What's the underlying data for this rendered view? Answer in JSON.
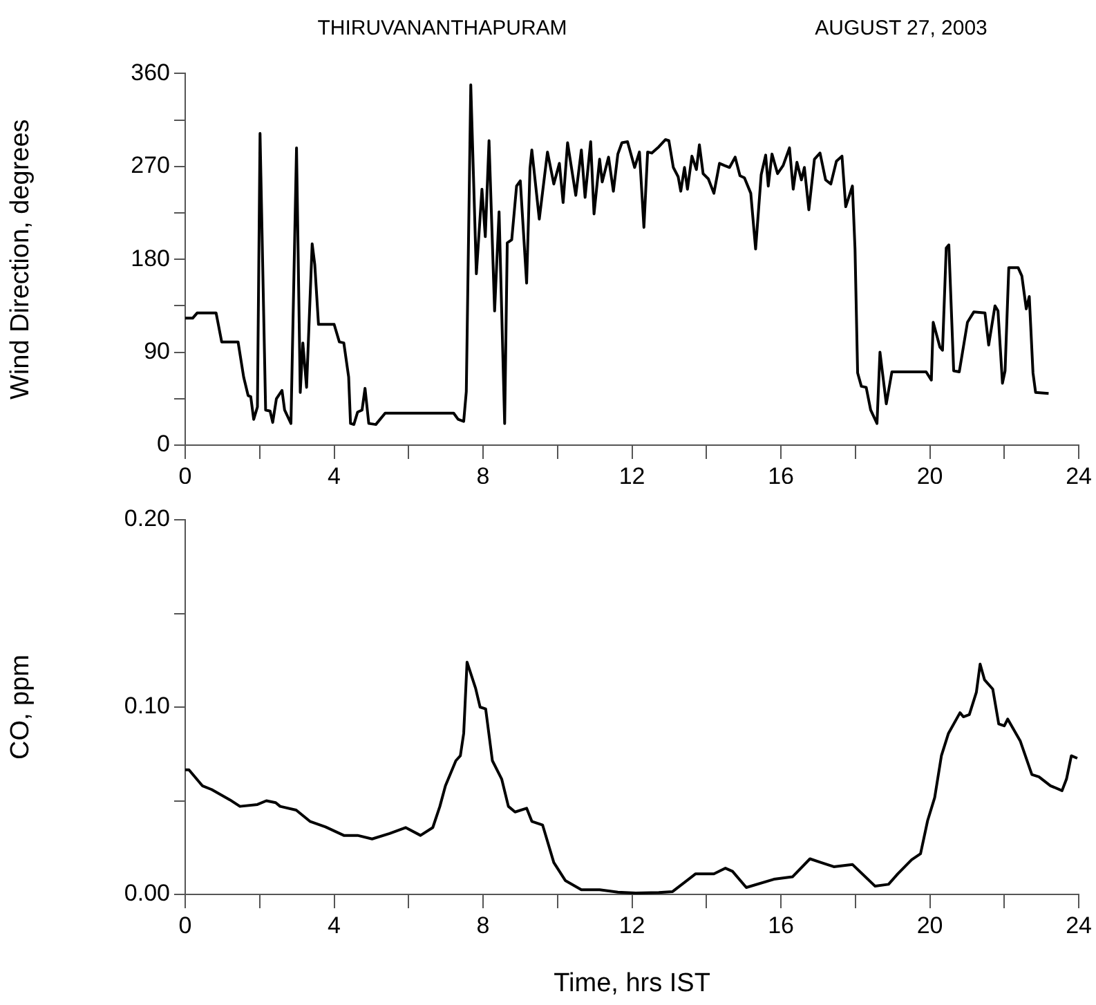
{
  "chart_data": [
    {
      "type": "line",
      "title": "THIRUVANANTHAPURAM",
      "subtitle": "AUGUST 27, 2003",
      "ylabel": "Wind Direction, degrees",
      "marker": "none",
      "line_style": "solid",
      "grid": false,
      "xlim": [
        0,
        24
      ],
      "xticks": [
        0,
        {
          "value": 2,
          "label": null
        },
        4,
        {
          "value": 6,
          "label": null
        },
        8,
        {
          "value": 10,
          "label": null
        },
        12,
        {
          "value": 14,
          "label": null
        },
        16,
        {
          "value": 18,
          "label": null
        },
        20,
        {
          "value": 22,
          "label": null
        },
        24
      ],
      "ylim": [
        0,
        360
      ],
      "yticks": [
        0,
        {
          "value": 45,
          "label": null
        },
        90,
        {
          "value": 135,
          "label": null
        },
        180,
        {
          "value": 225,
          "label": null
        },
        270,
        {
          "value": 315,
          "label": null
        },
        360
      ],
      "series": [
        {
          "color": "#000000",
          "x": [
            0,
            0.2,
            0.32,
            0.83,
            0.98,
            1.42,
            1.57,
            1.69,
            1.76,
            1.84,
            1.94,
            2.01,
            2.16,
            2.28,
            2.35,
            2.45,
            2.6,
            2.67,
            2.84,
            2.99,
            3.09,
            3.16,
            3.26,
            3.41,
            3.48,
            3.58,
            4.0,
            4.14,
            4.26,
            4.39,
            4.44,
            4.53,
            4.63,
            4.75,
            4.83,
            4.93,
            5.12,
            5.37,
            7.21,
            7.33,
            7.48,
            7.55,
            7.67,
            7.82,
            7.97,
            8.06,
            8.16,
            8.31,
            8.43,
            8.58,
            8.65,
            8.77,
            8.9,
            9.0,
            9.17,
            9.26,
            9.31,
            9.51,
            9.73,
            9.9,
            10.05,
            10.15,
            10.27,
            10.49,
            10.64,
            10.74,
            10.89,
            10.98,
            11.13,
            11.2,
            11.37,
            11.5,
            11.62,
            11.73,
            11.88,
            12.07,
            12.2,
            12.32,
            12.42,
            12.53,
            12.72,
            12.9,
            12.99,
            13.11,
            13.24,
            13.31,
            13.41,
            13.49,
            13.61,
            13.73,
            13.81,
            13.91,
            14.05,
            14.2,
            14.35,
            14.48,
            14.62,
            14.77,
            14.9,
            15.02,
            15.19,
            15.32,
            15.47,
            15.59,
            15.66,
            15.76,
            15.91,
            16.06,
            16.23,
            16.33,
            16.43,
            16.55,
            16.63,
            16.75,
            16.9,
            17.05,
            17.2,
            17.34,
            17.49,
            17.64,
            17.74,
            17.92,
            17.99,
            18.06,
            18.16,
            18.29,
            18.41,
            18.58,
            18.66,
            18.83,
            18.98,
            19.9,
            20.04,
            20.09,
            20.27,
            20.34,
            20.44,
            20.51,
            20.64,
            20.79,
            21.01,
            21.18,
            21.48,
            21.58,
            21.75,
            21.83,
            21.95,
            22.02,
            22.12,
            22.37,
            22.47,
            22.59,
            22.67,
            22.77,
            22.84,
            23.19
          ],
          "values": [
            123,
            123,
            128,
            128,
            100,
            100,
            66,
            48,
            47,
            25,
            37,
            302,
            34,
            33,
            22,
            45,
            53,
            34,
            21,
            288,
            51,
            99,
            56,
            195,
            175,
            117,
            117,
            100,
            99,
            66,
            21,
            20,
            32,
            34,
            55,
            21,
            20,
            31,
            31,
            25,
            23,
            52,
            349,
            166,
            248,
            202,
            295,
            130,
            226,
            21,
            196,
            199,
            251,
            256,
            157,
            268,
            286,
            219,
            284,
            253,
            273,
            235,
            293,
            242,
            286,
            240,
            294,
            224,
            277,
            255,
            279,
            246,
            282,
            293,
            294,
            269,
            284,
            211,
            284,
            283,
            289,
            296,
            295,
            269,
            260,
            246,
            269,
            248,
            280,
            267,
            291,
            263,
            258,
            244,
            273,
            271,
            269,
            279,
            261,
            259,
            244,
            190,
            262,
            281,
            251,
            282,
            263,
            271,
            288,
            248,
            274,
            257,
            269,
            228,
            277,
            283,
            257,
            253,
            275,
            280,
            231,
            251,
            190,
            70,
            57,
            56,
            34,
            21,
            90,
            40,
            71,
            71,
            63,
            119,
            95,
            92,
            191,
            194,
            72,
            71,
            119,
            129,
            128,
            97,
            135,
            130,
            60,
            72,
            172,
            172,
            164,
            132,
            144,
            70,
            51,
            50
          ]
        }
      ]
    },
    {
      "type": "line",
      "xlabel": "Time, hrs IST",
      "ylabel": "CO, ppm",
      "marker": "none",
      "line_style": "solid",
      "grid": false,
      "xlim": [
        0,
        24
      ],
      "xticks": [
        0,
        {
          "value": 2,
          "label": null
        },
        4,
        {
          "value": 6,
          "label": null
        },
        8,
        {
          "value": 10,
          "label": null
        },
        12,
        {
          "value": 14,
          "label": null
        },
        16,
        {
          "value": 18,
          "label": null
        },
        20,
        {
          "value": 22,
          "label": null
        },
        24
      ],
      "ylim": [
        0,
        0.2
      ],
      "yticks": [
        {
          "value": 0,
          "label": "0.00"
        },
        {
          "value": 0.05,
          "label": null
        },
        {
          "value": 0.1,
          "label": "0.10"
        },
        {
          "value": 0.15,
          "label": null
        },
        {
          "value": 0.2,
          "label": "0.20"
        }
      ],
      "series": [
        {
          "color": "#000000",
          "x": [
            0,
            0.1,
            0.46,
            0.71,
            1.2,
            1.47,
            1.94,
            2.18,
            2.43,
            2.55,
            2.98,
            3.35,
            3.77,
            4.26,
            4.63,
            5.02,
            5.49,
            5.92,
            6.32,
            6.65,
            6.84,
            6.99,
            7.27,
            7.39,
            7.48,
            7.57,
            7.8,
            7.92,
            8.07,
            8.25,
            8.5,
            8.68,
            8.86,
            9.17,
            9.31,
            9.6,
            9.9,
            10.21,
            10.64,
            11.13,
            11.62,
            12.1,
            12.72,
            13.09,
            13.71,
            14.2,
            14.51,
            14.7,
            15.07,
            15.81,
            16.31,
            16.78,
            17.05,
            17.42,
            17.92,
            18.53,
            18.89,
            19.14,
            19.51,
            19.75,
            19.94,
            20.13,
            20.31,
            20.5,
            20.81,
            20.9,
            21.06,
            21.25,
            21.35,
            21.47,
            21.69,
            21.85,
            22.0,
            22.09,
            22.43,
            22.74,
            22.93,
            23.24,
            23.55,
            23.67,
            23.8,
            23.96
          ],
          "values": [
            0.0665,
            0.0665,
            0.058,
            0.056,
            0.0505,
            0.047,
            0.048,
            0.05,
            0.049,
            0.047,
            0.045,
            0.039,
            0.036,
            0.0315,
            0.0315,
            0.0296,
            0.0325,
            0.0357,
            0.0315,
            0.0357,
            0.047,
            0.058,
            0.0714,
            0.074,
            0.086,
            0.124,
            0.11,
            0.1,
            0.099,
            0.0714,
            0.0616,
            0.047,
            0.044,
            0.046,
            0.039,
            0.037,
            0.017,
            0.0074,
            0.0025,
            0.0025,
            0.0012,
            0.0007,
            0.001,
            0.0015,
            0.011,
            0.011,
            0.014,
            0.0123,
            0.0037,
            0.0081,
            0.0094,
            0.019,
            0.0172,
            0.0148,
            0.016,
            0.0044,
            0.0054,
            0.011,
            0.0185,
            0.0217,
            0.0394,
            0.0517,
            0.074,
            0.086,
            0.097,
            0.0948,
            0.096,
            0.108,
            0.123,
            0.1145,
            0.1096,
            0.091,
            0.09,
            0.0936,
            0.0818,
            0.064,
            0.0628,
            0.058,
            0.0554,
            0.0616,
            0.074,
            0.0727
          ]
        }
      ]
    }
  ]
}
